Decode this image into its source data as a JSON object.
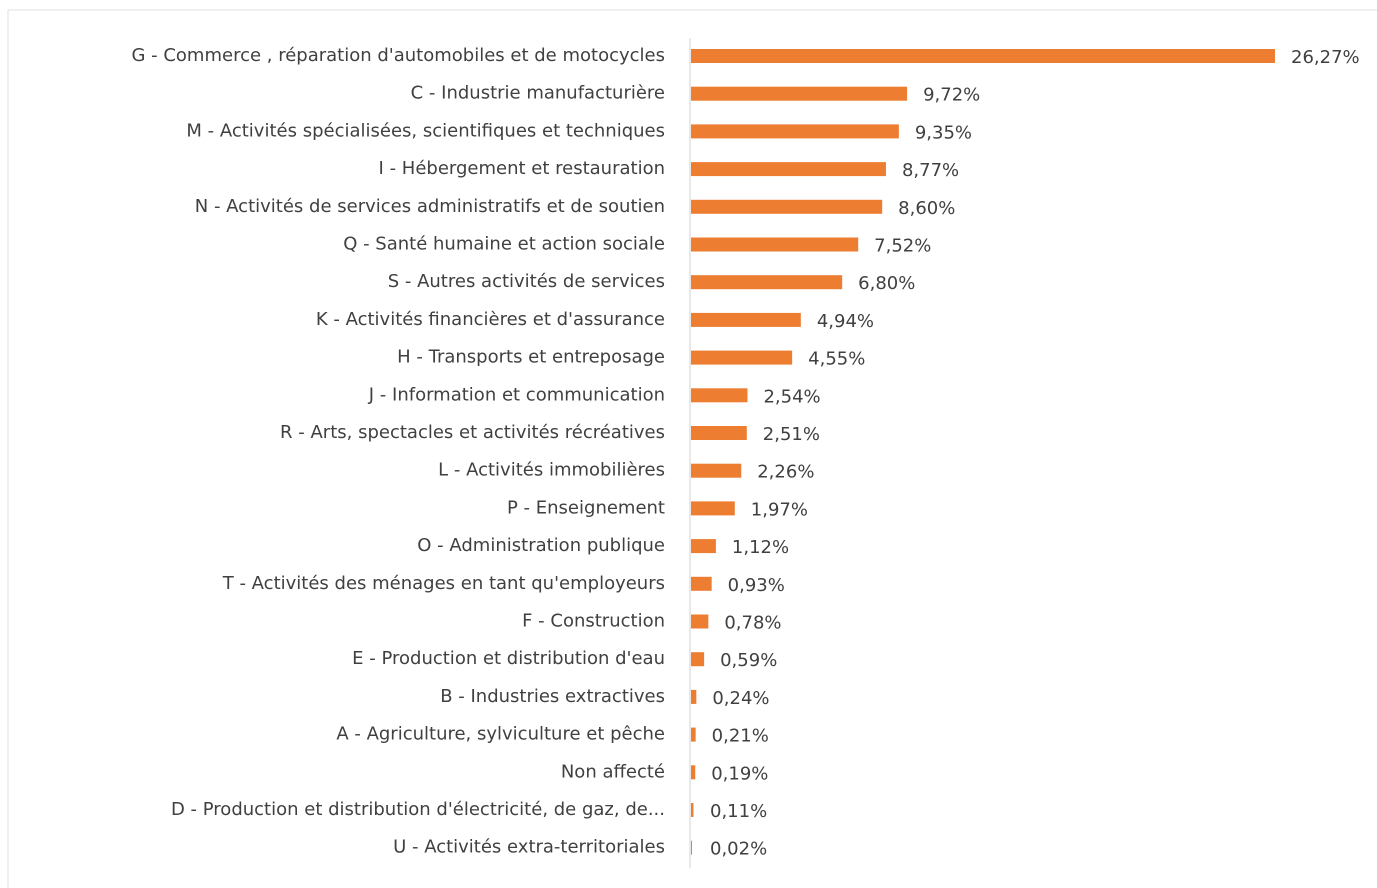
{
  "chart_data": {
    "type": "bar",
    "orientation": "horizontal",
    "color": "#ed7d31",
    "categories": [
      "G - Commerce , réparation d'automobiles et de motocycles",
      "C - Industrie manufacturière",
      "M - Activités spécialisées, scientifiques et techniques",
      "I - Hébergement et restauration",
      "N - Activités de services administratifs et de soutien",
      "Q - Santé humaine et action sociale",
      "S - Autres activités de services",
      "K - Activités financières et d'assurance",
      "H - Transports et entreposage",
      "J - Information et communication",
      "R - Arts, spectacles et activités récréatives",
      "L - Activités immobilières",
      "P - Enseignement",
      "O - Administration publique",
      "T - Activités des ménages en tant qu'employeurs",
      "F - Construction",
      "E - Production et distribution d'eau",
      "B - Industries extractives",
      "A - Agriculture, sylviculture et pêche",
      "Non affecté",
      "D - Production et distribution d'électricité, de gaz, de...",
      "U - Activités extra-territoriales"
    ],
    "values": [
      26.27,
      9.72,
      9.35,
      8.77,
      8.6,
      7.52,
      6.8,
      4.94,
      4.55,
      2.54,
      2.51,
      2.26,
      1.97,
      1.12,
      0.93,
      0.78,
      0.59,
      0.24,
      0.21,
      0.19,
      0.11,
      0.02
    ],
    "value_labels": [
      "26,27%",
      "9,72%",
      "9,35%",
      "8,77%",
      "8,60%",
      "7,52%",
      "6,80%",
      "4,94%",
      "4,55%",
      "2,54%",
      "2,51%",
      "2,26%",
      "1,97%",
      "1,12%",
      "0,93%",
      "0,78%",
      "0,59%",
      "0,24%",
      "0,21%",
      "0,19%",
      "0,11%",
      "0,02%"
    ]
  }
}
